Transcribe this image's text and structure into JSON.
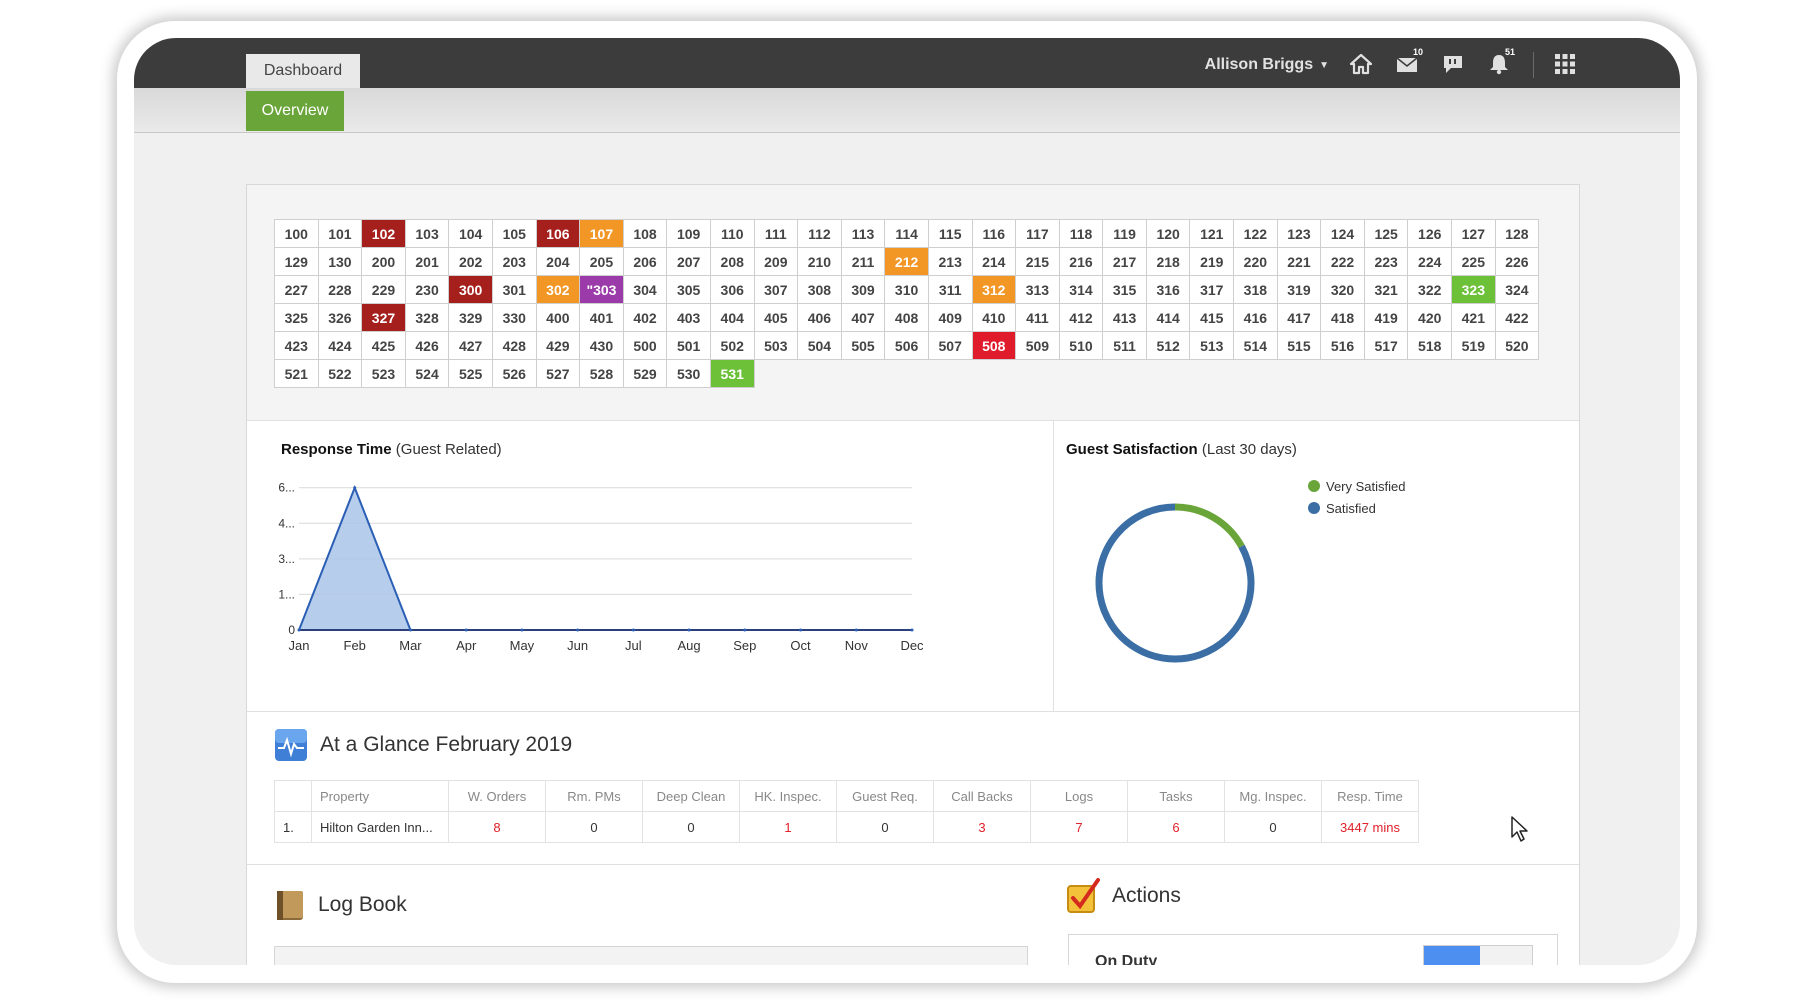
{
  "header": {
    "dashboard_tab": "Dashboard",
    "user_name": "Allison Briggs",
    "mail_count": "10",
    "alerts_count": "51",
    "icons": [
      "home-icon",
      "mail-icon",
      "chat-icon",
      "bell-icon",
      "apps-grid-icon"
    ]
  },
  "subnav": {
    "overview_tab": "Overview"
  },
  "rooms": [
    {
      "n": "100"
    },
    {
      "n": "101"
    },
    {
      "n": "102",
      "s": "darkred"
    },
    {
      "n": "103"
    },
    {
      "n": "104"
    },
    {
      "n": "105"
    },
    {
      "n": "106",
      "s": "darkred"
    },
    {
      "n": "107",
      "s": "orange"
    },
    {
      "n": "108"
    },
    {
      "n": "109"
    },
    {
      "n": "110"
    },
    {
      "n": "111"
    },
    {
      "n": "112"
    },
    {
      "n": "113"
    },
    {
      "n": "114"
    },
    {
      "n": "115"
    },
    {
      "n": "116"
    },
    {
      "n": "117"
    },
    {
      "n": "118"
    },
    {
      "n": "119"
    },
    {
      "n": "120"
    },
    {
      "n": "121"
    },
    {
      "n": "122"
    },
    {
      "n": "123"
    },
    {
      "n": "124"
    },
    {
      "n": "125"
    },
    {
      "n": "126"
    },
    {
      "n": "127"
    },
    {
      "n": "128"
    },
    {
      "n": "129"
    },
    {
      "n": "130"
    },
    {
      "n": "200"
    },
    {
      "n": "201"
    },
    {
      "n": "202"
    },
    {
      "n": "203"
    },
    {
      "n": "204"
    },
    {
      "n": "205"
    },
    {
      "n": "206"
    },
    {
      "n": "207"
    },
    {
      "n": "208"
    },
    {
      "n": "209"
    },
    {
      "n": "210"
    },
    {
      "n": "211"
    },
    {
      "n": "212",
      "s": "orange"
    },
    {
      "n": "213"
    },
    {
      "n": "214"
    },
    {
      "n": "215"
    },
    {
      "n": "216"
    },
    {
      "n": "217"
    },
    {
      "n": "218"
    },
    {
      "n": "219"
    },
    {
      "n": "220"
    },
    {
      "n": "221"
    },
    {
      "n": "222"
    },
    {
      "n": "223"
    },
    {
      "n": "224"
    },
    {
      "n": "225"
    },
    {
      "n": "226"
    },
    {
      "n": "227"
    },
    {
      "n": "228"
    },
    {
      "n": "229"
    },
    {
      "n": "230"
    },
    {
      "n": "300",
      "s": "darkred"
    },
    {
      "n": "301"
    },
    {
      "n": "302",
      "s": "orange"
    },
    {
      "n": "\"303",
      "s": "purple"
    },
    {
      "n": "304"
    },
    {
      "n": "305"
    },
    {
      "n": "306"
    },
    {
      "n": "307"
    },
    {
      "n": "308"
    },
    {
      "n": "309"
    },
    {
      "n": "310"
    },
    {
      "n": "311"
    },
    {
      "n": "312",
      "s": "orange"
    },
    {
      "n": "313"
    },
    {
      "n": "314"
    },
    {
      "n": "315"
    },
    {
      "n": "316"
    },
    {
      "n": "317"
    },
    {
      "n": "318"
    },
    {
      "n": "319"
    },
    {
      "n": "320"
    },
    {
      "n": "321"
    },
    {
      "n": "322"
    },
    {
      "n": "323",
      "s": "green"
    },
    {
      "n": "324"
    },
    {
      "n": "325"
    },
    {
      "n": "326"
    },
    {
      "n": "327",
      "s": "darkred"
    },
    {
      "n": "328"
    },
    {
      "n": "329"
    },
    {
      "n": "330"
    },
    {
      "n": "400"
    },
    {
      "n": "401"
    },
    {
      "n": "402"
    },
    {
      "n": "403"
    },
    {
      "n": "404"
    },
    {
      "n": "405"
    },
    {
      "n": "406"
    },
    {
      "n": "407"
    },
    {
      "n": "408"
    },
    {
      "n": "409"
    },
    {
      "n": "410"
    },
    {
      "n": "411"
    },
    {
      "n": "412"
    },
    {
      "n": "413"
    },
    {
      "n": "414"
    },
    {
      "n": "415"
    },
    {
      "n": "416"
    },
    {
      "n": "417"
    },
    {
      "n": "418"
    },
    {
      "n": "419"
    },
    {
      "n": "420"
    },
    {
      "n": "421"
    },
    {
      "n": "422"
    },
    {
      "n": "423"
    },
    {
      "n": "424"
    },
    {
      "n": "425"
    },
    {
      "n": "426"
    },
    {
      "n": "427"
    },
    {
      "n": "428"
    },
    {
      "n": "429"
    },
    {
      "n": "430"
    },
    {
      "n": "500"
    },
    {
      "n": "501"
    },
    {
      "n": "502"
    },
    {
      "n": "503"
    },
    {
      "n": "504"
    },
    {
      "n": "505"
    },
    {
      "n": "506"
    },
    {
      "n": "507"
    },
    {
      "n": "508",
      "s": "red"
    },
    {
      "n": "509"
    },
    {
      "n": "510"
    },
    {
      "n": "511"
    },
    {
      "n": "512"
    },
    {
      "n": "513"
    },
    {
      "n": "514"
    },
    {
      "n": "515"
    },
    {
      "n": "516"
    },
    {
      "n": "517"
    },
    {
      "n": "518"
    },
    {
      "n": "519"
    },
    {
      "n": "520"
    },
    {
      "n": "521"
    },
    {
      "n": "522"
    },
    {
      "n": "523"
    },
    {
      "n": "524"
    },
    {
      "n": "525"
    },
    {
      "n": "526"
    },
    {
      "n": "527"
    },
    {
      "n": "528"
    },
    {
      "n": "529"
    },
    {
      "n": "530"
    },
    {
      "n": "531",
      "s": "green"
    }
  ],
  "response_card": {
    "title_bold": "Response Time",
    "title_rest": " (Guest Related)"
  },
  "satisfaction_card": {
    "title_bold": "Guest Satisfaction",
    "title_rest": " (Last 30 days)"
  },
  "chart_data": [
    {
      "type": "area",
      "categories": [
        "Jan",
        "Feb",
        "Mar",
        "Apr",
        "May",
        "Jun",
        "Jul",
        "Aug",
        "Sep",
        "Oct",
        "Nov",
        "Dec"
      ],
      "values": [
        0,
        6,
        0,
        0,
        0,
        0,
        0,
        0,
        0,
        0,
        0,
        0
      ],
      "y_ticks": [
        "0",
        "1...",
        "3...",
        "4...",
        "6..."
      ],
      "y_tick_values": [
        0,
        1.5,
        3,
        4.5,
        6
      ],
      "ylim": [
        0,
        6.2
      ],
      "grid": true,
      "colors": {
        "fill": "#a9c4e8",
        "line": "#2b5fb5"
      }
    },
    {
      "type": "pie",
      "style": "donut",
      "labels": [
        "Very Satisfied",
        "Satisfied"
      ],
      "values": [
        17,
        83
      ],
      "colors": [
        "#6aa53a",
        "#3a6ea5"
      ],
      "legend": "top-right"
    }
  ],
  "glance": {
    "title": "At a Glance February 2019",
    "columns": [
      "Property",
      "W. Orders",
      "Rm. PMs",
      "Deep Clean",
      "HK. Inspec.",
      "Guest Req.",
      "Call Backs",
      "Logs",
      "Tasks",
      "Mg. Inspec.",
      "Resp. Time"
    ],
    "rows": [
      {
        "num": "1.",
        "property": "Hilton Garden Inn...",
        "values": [
          "8",
          "0",
          "0",
          "1",
          "0",
          "3",
          "7",
          "6",
          "0",
          "3447 mins"
        ]
      }
    ]
  },
  "logbook": {
    "title": "Log Book"
  },
  "actions": {
    "title": "Actions",
    "on_duty_label": "On Duty"
  }
}
